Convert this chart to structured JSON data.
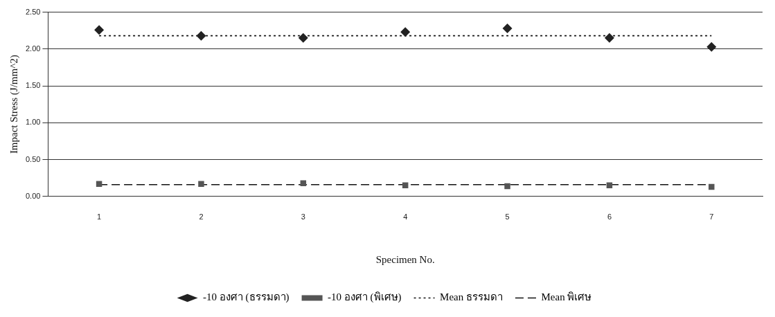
{
  "chart_data": {
    "type": "scatter",
    "xlabel": "Specimen No.",
    "ylabel": "Impact Stress (J/mm^2)",
    "categories": [
      "1",
      "2",
      "3",
      "4",
      "5",
      "6",
      "7"
    ],
    "ylim": [
      0,
      2.5
    ],
    "yticks": [
      {
        "value": 0,
        "label": "0.00"
      },
      {
        "value": 0.5,
        "label": "0.50"
      },
      {
        "value": 1,
        "label": "1.00"
      },
      {
        "value": 1.5,
        "label": "1.50"
      },
      {
        "value": 2,
        "label": "2.00"
      },
      {
        "value": 2.5,
        "label": "2.50"
      }
    ],
    "grid": "y",
    "legend": "bottom",
    "series": [
      {
        "name": "-10 องศา (ธรรมดา)",
        "marker": "diamond",
        "color": "#222222",
        "values": [
          2.26,
          2.18,
          2.15,
          2.23,
          2.28,
          2.15,
          2.03
        ]
      },
      {
        "name": "-10 องศา (พิเศษ)",
        "marker": "square",
        "color": "#555555",
        "values": [
          0.17,
          0.17,
          0.18,
          0.15,
          0.14,
          0.15,
          0.13
        ]
      },
      {
        "name": "Mean ธรรมดา",
        "type": "line",
        "marker": "none",
        "line_style": "dotted",
        "color": "#111111",
        "values": [
          2.18,
          2.18,
          2.18,
          2.18,
          2.18,
          2.18,
          2.18
        ]
      },
      {
        "name": "Mean พิเศษ",
        "type": "line",
        "marker": "none",
        "line_style": "dashed",
        "color": "#111111",
        "values": [
          0.16,
          0.16,
          0.16,
          0.16,
          0.16,
          0.16,
          0.16
        ]
      }
    ]
  }
}
